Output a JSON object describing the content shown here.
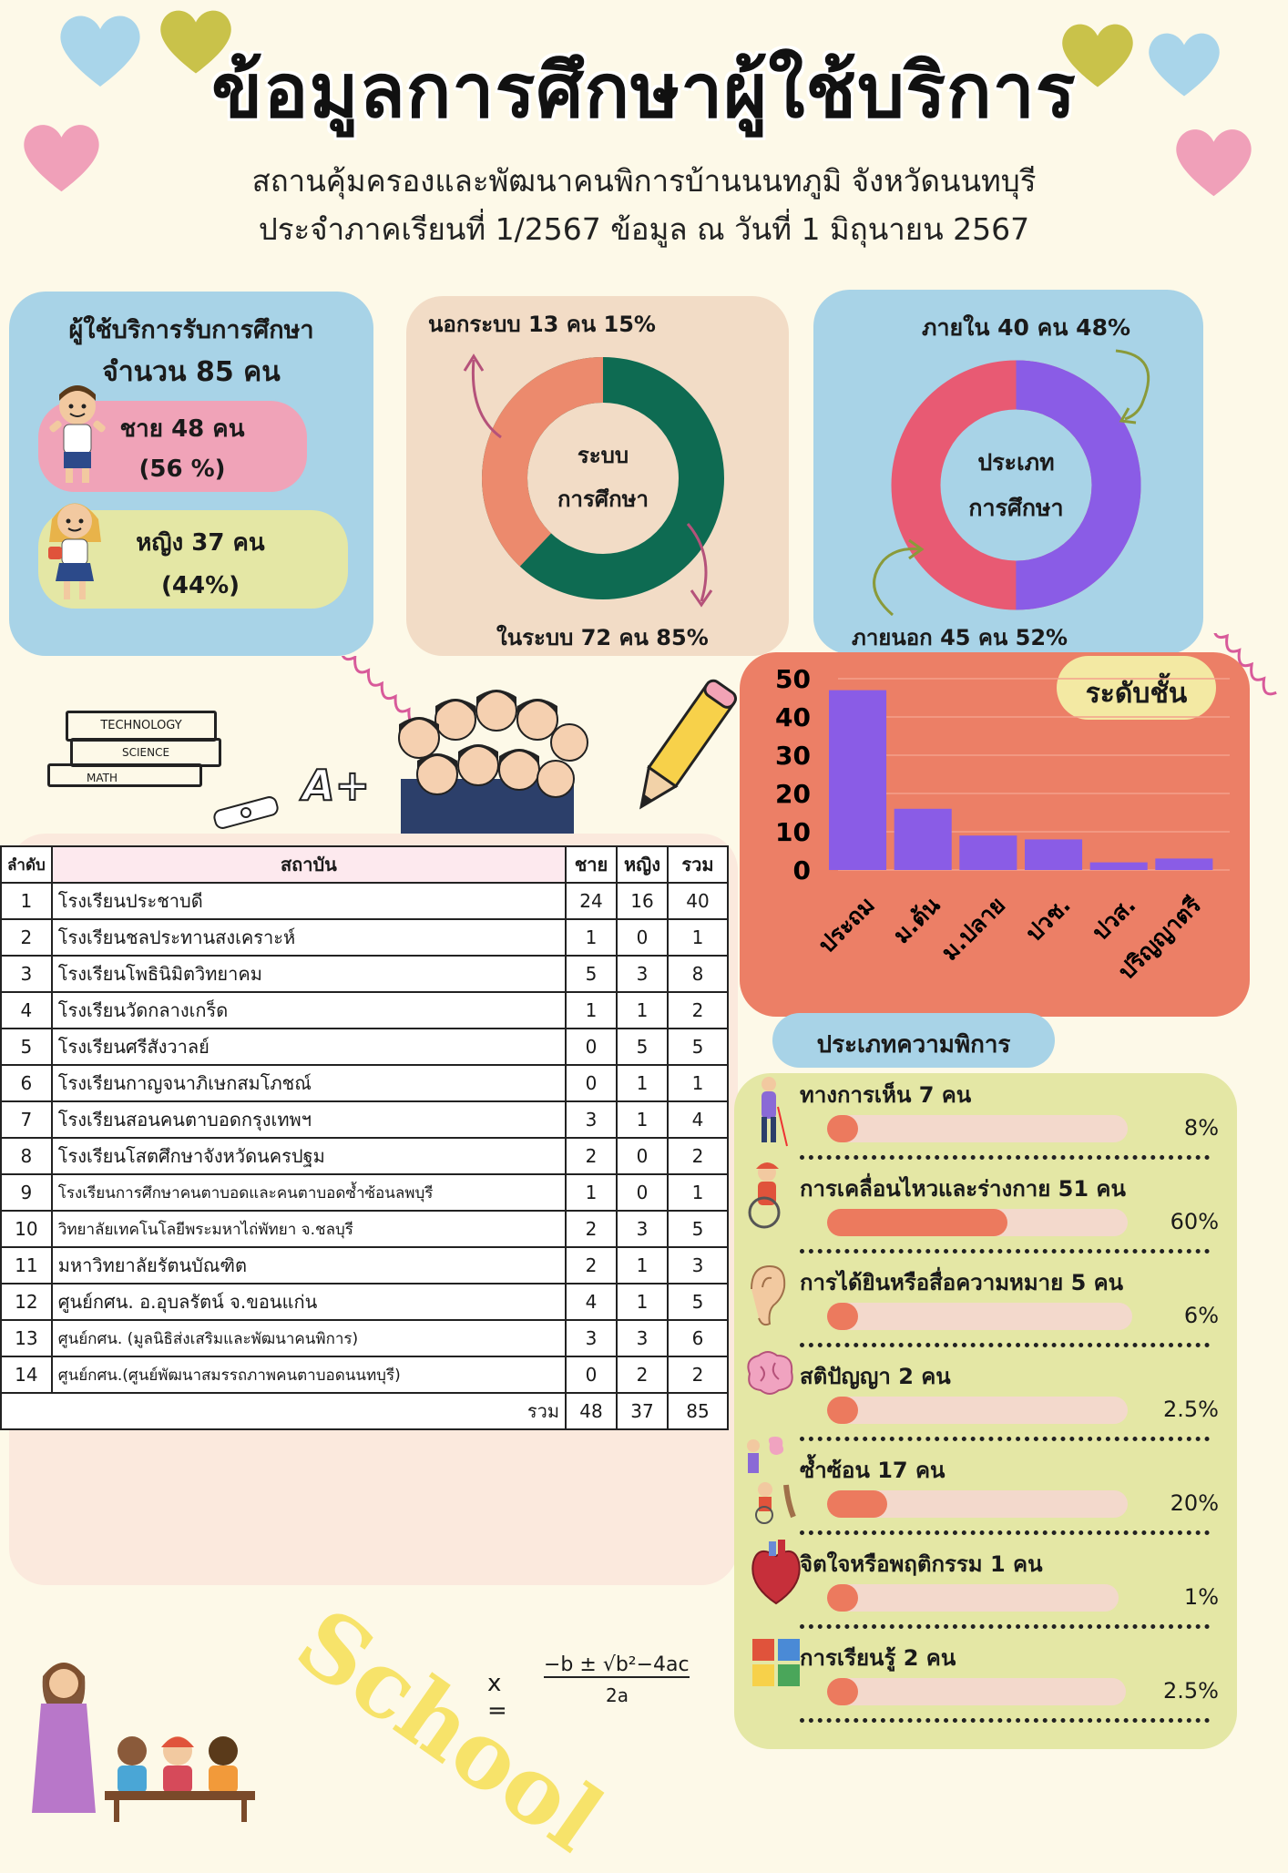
{
  "header": {
    "title": "ข้อมูลการศึกษาผู้ใช้บริการ",
    "subtitle_line1": "สถานคุ้มครองและพัฒนาคนพิการบ้านนนทภูมิ จังหวัดนนทบุรี",
    "subtitle_line2": "ประจำภาคเรียนที่ 1/2567 ข้อมูล ณ วันที่ 1 มิถุนายน 2567"
  },
  "students": {
    "heading": "ผู้ใช้บริการรับการศึกษา",
    "total": "จำนวน 85 คน",
    "male": "ชาย  48 คน",
    "male_pct": "(56 %)",
    "female": "หญิง 37 คน",
    "female_pct": "(44%)"
  },
  "system_donut": {
    "center_line1": "ระบบ",
    "center_line2": "การศึกษา",
    "outside_label": "นอกระบบ 13 คน 15%",
    "inside_label": "ในระบบ 72 คน 85%",
    "outside_value": 15,
    "inside_value": 85,
    "colors": {
      "outside": "#ec8a6d",
      "inside": "#0e6b52"
    }
  },
  "type_donut": {
    "center_line1": "ประเภท",
    "center_line2": "การศึกษา",
    "internal_label": "ภายใน 40 คน 48%",
    "external_label": "ภายนอก 45 คน 52%",
    "internal_value": 48,
    "external_value": 52,
    "colors": {
      "internal": "#8a5ce6",
      "external": "#e85a73"
    }
  },
  "stickers": {
    "book1": "TECHNOLOGY",
    "book2": "SCIENCE",
    "book3": "MATH",
    "grade": "A+",
    "school_word": "School",
    "formula_left": "x =",
    "formula_top": "−b ± √b²−4ac",
    "formula_bottom": "2a"
  },
  "chart_data": {
    "type": "bar",
    "title": "ระดับชั้น",
    "categories": [
      "ประถม",
      "ม.ต้น",
      "ม.ปลาย",
      "ปวช.",
      "ปวส.",
      "ปริญญาตรี"
    ],
    "values": [
      47,
      16,
      9,
      8,
      2,
      3
    ],
    "yticks": [
      "0",
      "10",
      "20",
      "30",
      "40",
      "50"
    ],
    "ylim": [
      0,
      50
    ],
    "bar_color": "#8a5ce6",
    "background": "#ec7f66"
  },
  "table": {
    "headers": [
      "ลำดับ",
      "สถาบัน",
      "ชาย",
      "หญิง",
      "รวม"
    ],
    "rows": [
      [
        "1",
        "โรงเรียนประชาบดี",
        "24",
        "16",
        "40"
      ],
      [
        "2",
        "โรงเรียนชลประทานสงเคราะห์",
        "1",
        "0",
        "1"
      ],
      [
        "3",
        "โรงเรียนโพธินิมิตวิทยาคม",
        "5",
        "3",
        "8"
      ],
      [
        "4",
        "โรงเรียนวัดกลางเกร็ด",
        "1",
        "1",
        "2"
      ],
      [
        "5",
        "โรงเรียนศรีสังวาลย์",
        "0",
        "5",
        "5"
      ],
      [
        "6",
        "โรงเรียนกาญจนาภิเษกสมโภชณ์",
        "0",
        "1",
        "1"
      ],
      [
        "7",
        "โรงเรียนสอนคนตาบอดกรุงเทพฯ",
        "3",
        "1",
        "4"
      ],
      [
        "8",
        "โรงเรียนโสตศึกษาจังหวัดนครปฐม",
        "2",
        "0",
        "2"
      ],
      [
        "9",
        "โรงเรียนการศึกษาคนตาบอดและคนตาบอดซ้ำซ้อนลพบุรี",
        "1",
        "0",
        "1"
      ],
      [
        "10",
        "วิทยาลัยเทคโนโลยีพระมหาไถ่พัทยา จ.ชลบุรี",
        "2",
        "3",
        "5"
      ],
      [
        "11",
        "มหาวิทยาลัยรัตนบัณฑิต",
        "2",
        "1",
        "3"
      ],
      [
        "12",
        "ศูนย์กศน. อ.อุบลรัตน์ จ.ขอนแก่น",
        "4",
        "1",
        "5"
      ],
      [
        "13",
        "ศูนย์กศน. (มูลนิธิส่งเสริมและพัฒนาคนพิการ)",
        "3",
        "3",
        "6"
      ],
      [
        "14",
        "ศูนย์กศน.(ศูนย์พัฒนาสมรรถภาพคนตาบอดนนทบุรี)",
        "0",
        "2",
        "2"
      ]
    ],
    "total_label": "รวม",
    "total": [
      "48",
      "37",
      "85"
    ]
  },
  "disability": {
    "heading": "ประเภทความพิการ",
    "items": [
      {
        "label": "ทางการเห็น  7 คน",
        "pct": "8%",
        "value": 8
      },
      {
        "label": "การเคลื่อนไหวและร่างกาย 51 คน",
        "pct": "60%",
        "value": 60
      },
      {
        "label": "การได้ยินหรือสื่อความหมาย 5 คน",
        "pct": "6%",
        "value": 6
      },
      {
        "label": "สติปัญญา 2 คน",
        "pct": "2.5%",
        "value": 2.5
      },
      {
        "label": "ซ้ำซ้อน 17 คน",
        "pct": "20%",
        "value": 20
      },
      {
        "label": "จิตใจหรือพฤติกรรม 1 คน",
        "pct": "1%",
        "value": 1
      },
      {
        "label": "การเรียนรู้ 2 คน",
        "pct": "2.5%",
        "value": 2.5
      }
    ]
  }
}
